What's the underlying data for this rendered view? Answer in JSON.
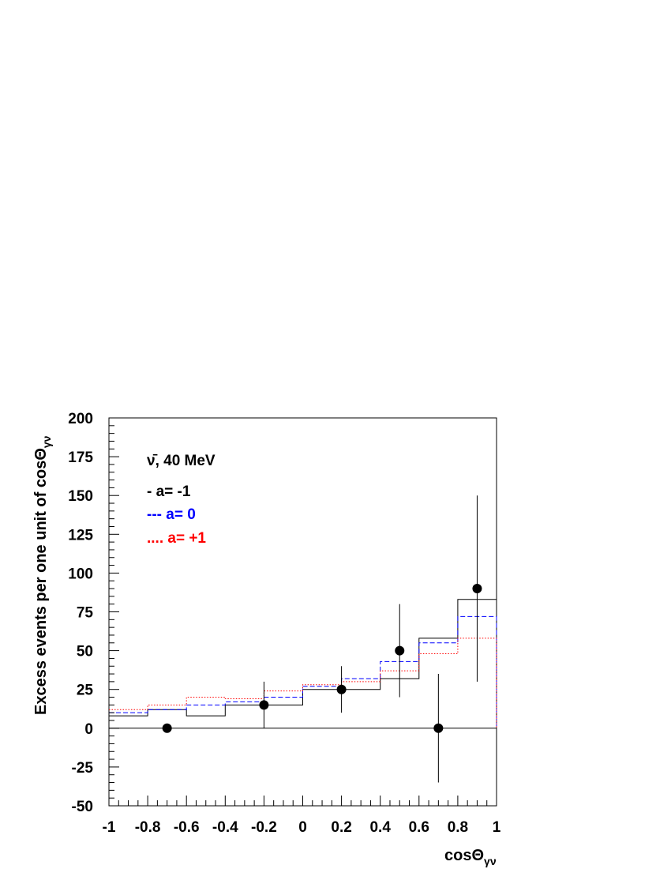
{
  "chart_data": {
    "type": "line",
    "annotation": "ν̄, 40 MeV",
    "xlabel": "cosΘ",
    "xlabel_sub": "γν",
    "ylabel": "Excess events per one unit of cosΘ",
    "ylabel_sub": "γν",
    "xlim": [
      -1,
      1
    ],
    "ylim": [
      -50,
      200
    ],
    "x_ticks": [
      -1,
      -0.8,
      -0.6,
      -0.4,
      -0.2,
      0,
      0.2,
      0.4,
      0.6,
      0.8,
      1
    ],
    "x_tick_labels": [
      "-1",
      "-0.8",
      "-0.6",
      "-0.4",
      "-0.2",
      "0",
      "0.2",
      "0.4",
      "0.6",
      "0.8",
      "1"
    ],
    "y_ticks": [
      -50,
      -25,
      0,
      25,
      50,
      75,
      100,
      125,
      150,
      175,
      200
    ],
    "y_tick_labels": [
      "-50",
      "-25",
      "0",
      "25",
      "50",
      "75",
      "100",
      "125",
      "150",
      "175",
      "200"
    ],
    "zero_line": true,
    "bin_edges": [
      -1,
      -0.8,
      -0.6,
      -0.4,
      -0.2,
      0,
      0.2,
      0.4,
      0.6,
      0.8,
      1
    ],
    "series": [
      {
        "name": "a= -1",
        "legend_label": "- a= -1",
        "style": "solid",
        "color": "#000000",
        "values": [
          8,
          12,
          8,
          15,
          15,
          25,
          25,
          32,
          58,
          83
        ]
      },
      {
        "name": "a= 0",
        "legend_label": "--- a= 0",
        "style": "dashed",
        "color": "#0000ff",
        "values": [
          10,
          12,
          15,
          17,
          20,
          27,
          32,
          43,
          55,
          72
        ]
      },
      {
        "name": "a= +1",
        "legend_label": ".... a= +1",
        "style": "dotted",
        "color": "#ff0000",
        "values": [
          12,
          15,
          20,
          19,
          24,
          28,
          30,
          37,
          48,
          58
        ]
      }
    ],
    "data_points": [
      {
        "x": -0.7,
        "y": 0,
        "ylow": 0,
        "yhigh": 0
      },
      {
        "x": -0.2,
        "y": 15,
        "ylow": 0,
        "yhigh": 30
      },
      {
        "x": 0.2,
        "y": 25,
        "ylow": 10,
        "yhigh": 40
      },
      {
        "x": 0.5,
        "y": 50,
        "ylow": 20,
        "yhigh": 80
      },
      {
        "x": 0.7,
        "y": 0,
        "ylow": -35,
        "yhigh": 35
      },
      {
        "x": 0.9,
        "y": 90,
        "ylow": 30,
        "yhigh": 150
      }
    ]
  }
}
